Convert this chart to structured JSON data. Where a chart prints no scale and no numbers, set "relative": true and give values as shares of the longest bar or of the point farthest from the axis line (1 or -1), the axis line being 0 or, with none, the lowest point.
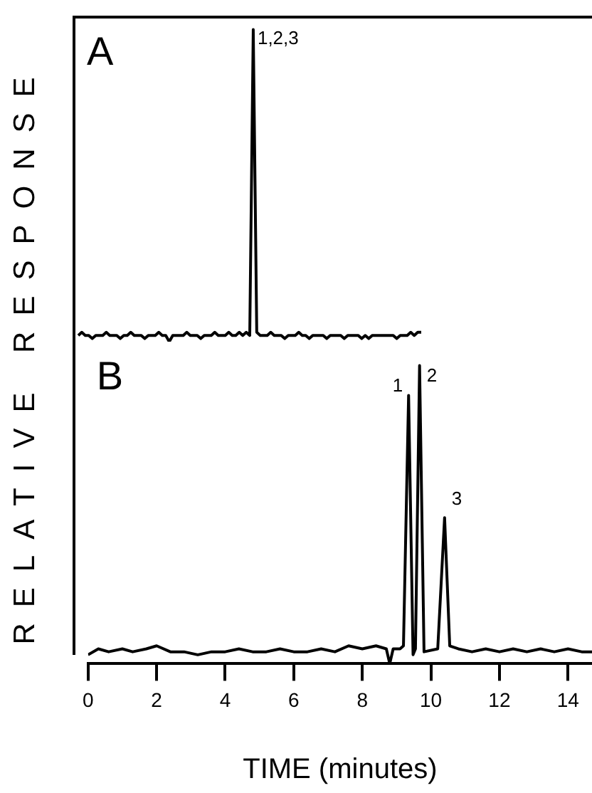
{
  "chart_data": [
    {
      "type": "line",
      "title": "A",
      "ylabel": "RELATIVE RESPONSE",
      "relative": true,
      "tick_labels": false,
      "color": "#000000",
      "marker": "none",
      "categories": [
        null,
        null,
        null,
        null,
        null,
        null,
        null,
        null,
        null,
        null,
        null,
        null,
        null,
        null,
        null,
        null,
        null,
        null,
        null,
        null,
        null,
        null,
        null,
        null,
        null,
        null,
        null,
        null,
        null,
        null,
        null,
        null,
        null,
        null,
        null,
        null,
        null,
        null,
        null,
        null,
        null,
        null,
        null,
        null,
        null,
        null,
        null,
        null,
        null,
        null,
        null,
        null,
        null,
        null,
        null,
        null,
        null,
        null,
        null,
        null,
        null,
        null,
        null,
        null,
        null,
        null,
        null,
        null,
        null,
        null,
        null,
        null,
        null,
        null,
        null,
        null,
        null,
        null,
        null,
        null,
        null,
        null,
        null,
        null,
        null,
        null,
        null,
        null,
        null,
        null,
        null,
        null,
        null,
        null,
        null,
        null,
        null,
        null,
        null
      ],
      "values": [
        0.02,
        0.03,
        0.02,
        0.02,
        0.01,
        0.02,
        0.02,
        0.02,
        0.03,
        0.02,
        0.02,
        0.02,
        0.01,
        0.02,
        0.02,
        0.03,
        0.02,
        0.02,
        0.02,
        0.01,
        0.02,
        0.02,
        0.02,
        0.03,
        0.02,
        0.02,
        0.0,
        0.02,
        0.02,
        0.02,
        0.02,
        0.03,
        0.02,
        0.02,
        0.02,
        0.01,
        0.02,
        0.02,
        0.02,
        0.03,
        0.02,
        0.02,
        0.02,
        0.03,
        0.02,
        0.02,
        0.03,
        0.02,
        0.03,
        0.02,
        1,
        0.03,
        0.02,
        0.02,
        0.02,
        0.03,
        0.02,
        0.02,
        0.02,
        0.01,
        0.02,
        0.02,
        0.02,
        0.03,
        0.02,
        0.02,
        0.01,
        0.02,
        0.02,
        0.02,
        0.02,
        0.01,
        0.02,
        0.02,
        0.02,
        0.02,
        0.01,
        0.02,
        0.02,
        0.02,
        0.02,
        0.01,
        0.02,
        0.01,
        0.02,
        0.02,
        0.02,
        0.02,
        0.02,
        0.02,
        0.02,
        0.01,
        0.02,
        0.02,
        0.02,
        0.03,
        0.02,
        0.03,
        0.03
      ],
      "annotations": [
        "1,2,3"
      ]
    },
    {
      "type": "line",
      "title": "B",
      "xlabel": "TIME (minutes)",
      "relative": true,
      "tick_labels": "x",
      "color": "#000000",
      "marker": "none",
      "x": [
        0,
        0.3,
        0.6,
        1.0,
        1.3,
        1.7,
        2.0,
        2.4,
        2.8,
        3.2,
        3.6,
        4.0,
        4.4,
        4.8,
        5.2,
        5.6,
        6.0,
        6.4,
        6.8,
        7.2,
        7.6,
        8.0,
        8.4,
        8.7,
        8.8,
        8.9,
        9.1,
        9.2,
        9.35,
        9.48,
        9.55,
        9.67,
        9.8,
        10.2,
        10.4,
        10.55,
        10.8,
        11.2,
        11.6,
        12.0,
        12.4,
        12.8,
        13.2,
        13.6,
        14.0,
        14.4,
        14.7
      ],
      "values": [
        0.03,
        0.05,
        0.04,
        0.05,
        0.04,
        0.05,
        0.06,
        0.04,
        0.04,
        0.03,
        0.04,
        0.04,
        0.05,
        0.04,
        0.04,
        0.05,
        0.04,
        0.04,
        0.05,
        0.04,
        0.06,
        0.05,
        0.06,
        0.05,
        0.0,
        0.05,
        0.05,
        0.06,
        0.9,
        0.03,
        0.05,
        1,
        0.04,
        0.05,
        0.49,
        0.06,
        0.05,
        0.04,
        0.05,
        0.04,
        0.05,
        0.04,
        0.05,
        0.04,
        0.05,
        0.04,
        0.04
      ],
      "xlim": [
        0,
        14.7
      ],
      "xticks": [
        0,
        2,
        4,
        6,
        8,
        10,
        12,
        14
      ],
      "annotations": [
        {
          "text": "1",
          "x": 9.35,
          "y": 0.9
        },
        {
          "text": "2",
          "x": 9.67,
          "y": 1
        },
        {
          "text": "3",
          "x": 10.4,
          "y": 0.49
        }
      ]
    }
  ]
}
